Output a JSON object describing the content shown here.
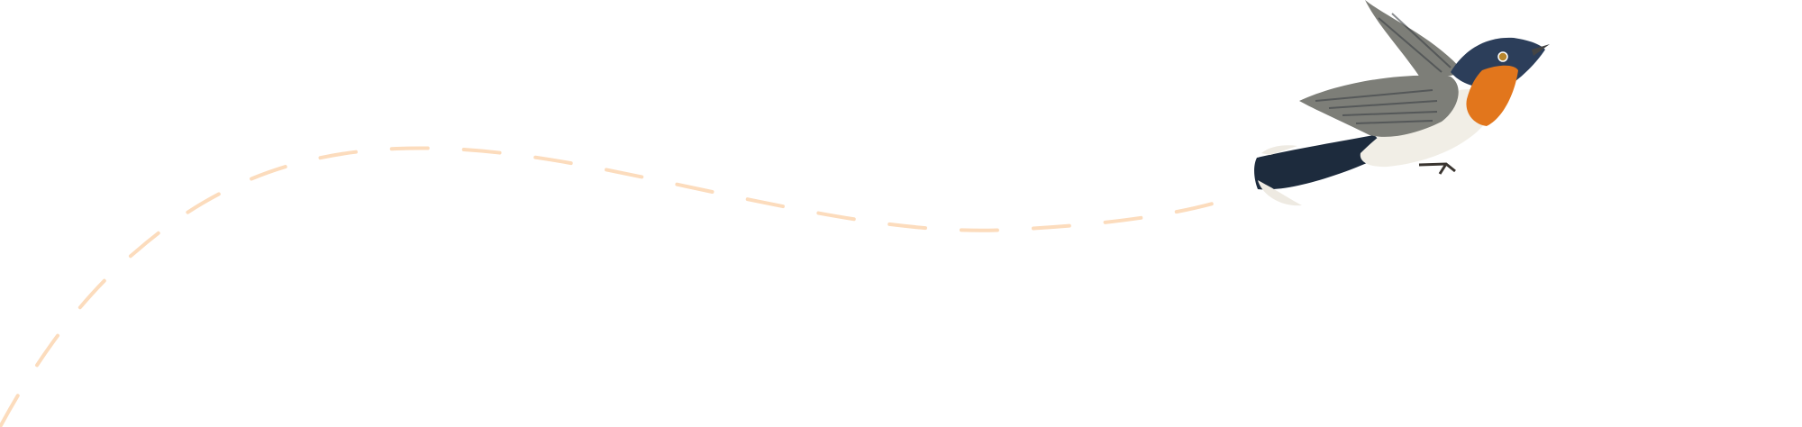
{
  "illustration": {
    "path_style": "dashed",
    "colors": {
      "flight_path": "#fcdcbd",
      "bird_head": "#2c3e5a",
      "bird_throat": "#e2761c",
      "bird_belly": "#f1eee6",
      "bird_wing": "#7d7e78",
      "bird_tail": "#1d2b3d"
    },
    "icons": [
      "dashed-flight-path",
      "bird-illustration"
    ]
  }
}
